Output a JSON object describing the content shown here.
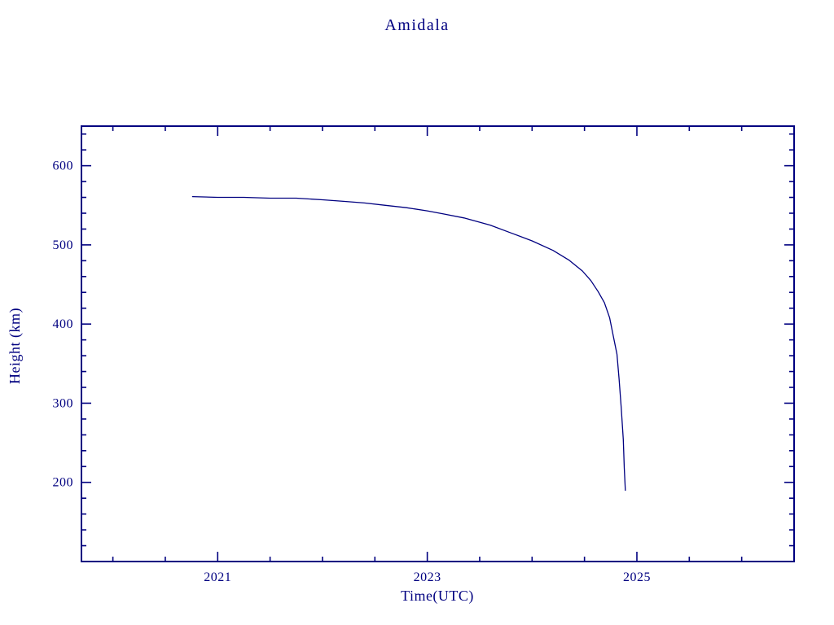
{
  "window": {
    "background": "#ffffff"
  },
  "colors": {
    "accent": "#000080",
    "background": "#ffffff"
  },
  "chart_data": {
    "type": "line",
    "title": "Amidala",
    "xlabel": "Time(UTC)",
    "ylabel": "Height (km)",
    "xlim": [
      2019.7,
      2026.5
    ],
    "ylim": [
      100,
      650
    ],
    "x_ticks": [
      2021,
      2023,
      2025
    ],
    "y_ticks": [
      200,
      300,
      400,
      500,
      600
    ],
    "x_minor_step": 0.5,
    "y_minor_step": 20,
    "grid": false,
    "legend": "none",
    "line_color": "#000080",
    "series": [
      {
        "name": "orbit-height",
        "points": [
          [
            2020.76,
            561
          ],
          [
            2021.0,
            560
          ],
          [
            2021.25,
            560
          ],
          [
            2021.5,
            559
          ],
          [
            2021.75,
            559
          ],
          [
            2022.0,
            557
          ],
          [
            2022.2,
            555
          ],
          [
            2022.4,
            553
          ],
          [
            2022.6,
            550
          ],
          [
            2022.8,
            547
          ],
          [
            2023.0,
            543
          ],
          [
            2023.16,
            539
          ],
          [
            2023.35,
            534
          ],
          [
            2023.6,
            525
          ],
          [
            2023.8,
            515
          ],
          [
            2024.0,
            505
          ],
          [
            2024.2,
            493
          ],
          [
            2024.35,
            481
          ],
          [
            2024.48,
            467
          ],
          [
            2024.56,
            455
          ],
          [
            2024.63,
            441
          ],
          [
            2024.69,
            427
          ],
          [
            2024.74,
            408
          ],
          [
            2024.77,
            388
          ],
          [
            2024.81,
            362
          ],
          [
            2024.83,
            331
          ],
          [
            2024.85,
            295
          ],
          [
            2024.87,
            254
          ],
          [
            2024.88,
            218
          ],
          [
            2024.89,
            190
          ]
        ]
      }
    ]
  }
}
